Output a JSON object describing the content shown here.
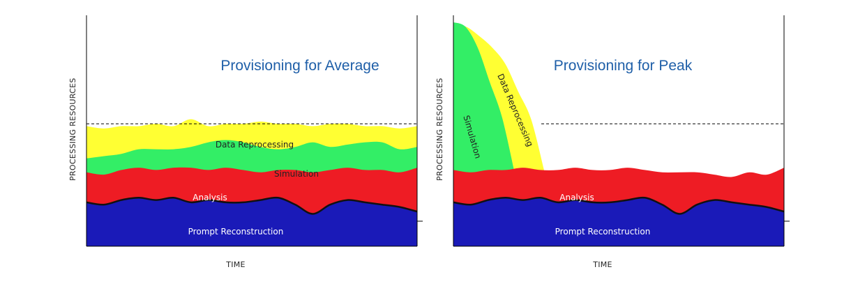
{
  "colors": {
    "prompt": "#1a1ab8",
    "analysis": "#ee1c24",
    "simulation": "#33ee66",
    "reprocessing": "#ffff33",
    "title": "#1f5fa8",
    "outline": "#111111"
  },
  "chart_data": [
    {
      "type": "area",
      "title": "Provisioning for Average",
      "xlabel": "TIME",
      "ylabel": "PROCESSING RESOURCES",
      "ylim": [
        0,
        100
      ],
      "average_line": 53,
      "layers": [
        {
          "name": "Prompt Reconstruction",
          "label": "Prompt Reconstruction",
          "top": [
            19,
            18,
            20,
            21,
            20,
            21,
            19,
            20,
            19,
            19,
            20,
            21,
            18,
            14,
            18,
            20,
            19,
            18,
            17,
            15
          ]
        },
        {
          "name": "Analysis",
          "label": "Analysis",
          "top": [
            32,
            31,
            33,
            34,
            33,
            34,
            34,
            33,
            34,
            33,
            32,
            33,
            33,
            32,
            33,
            34,
            33,
            33,
            32,
            34
          ]
        },
        {
          "name": "Simulation",
          "label": "Simulation",
          "top": [
            38,
            39,
            40,
            42,
            42,
            42,
            43,
            45,
            46,
            45,
            43,
            42,
            43,
            45,
            43,
            44,
            45,
            45,
            42,
            43
          ]
        },
        {
          "name": "Data Reprocessing",
          "label": "Data Reprocessing",
          "top": [
            52,
            51,
            52,
            52,
            53,
            52,
            55,
            52,
            53,
            53,
            54,
            53,
            53,
            52,
            53,
            53,
            52,
            52,
            51,
            52
          ]
        }
      ]
    },
    {
      "type": "area",
      "title": "Provisioning for Peak",
      "xlabel": "TIME",
      "ylabel": "PROCESSING RESOURCES",
      "ylim": [
        0,
        100
      ],
      "average_line": 53,
      "layers": [
        {
          "name": "Prompt Reconstruction",
          "label": "Prompt Reconstruction",
          "top": [
            19,
            18,
            20,
            21,
            20,
            21,
            19,
            20,
            19,
            19,
            20,
            21,
            18,
            14,
            18,
            20,
            19,
            18,
            17,
            15
          ]
        },
        {
          "name": "Analysis",
          "label": "Analysis",
          "top": [
            33,
            32,
            33,
            33,
            34,
            33,
            33,
            34,
            33,
            33,
            34,
            33,
            32,
            32,
            32,
            31,
            30,
            32,
            31,
            34
          ]
        },
        {
          "name": "Simulation",
          "label": "Simulation",
          "peak": [
            97,
            95,
            86,
            71,
            56,
            33
          ]
        },
        {
          "name": "Data Reprocessing",
          "label": "Data Reprocessing",
          "peak": [
            96,
            95,
            91,
            86,
            79,
            67,
            55,
            33
          ]
        }
      ]
    }
  ]
}
